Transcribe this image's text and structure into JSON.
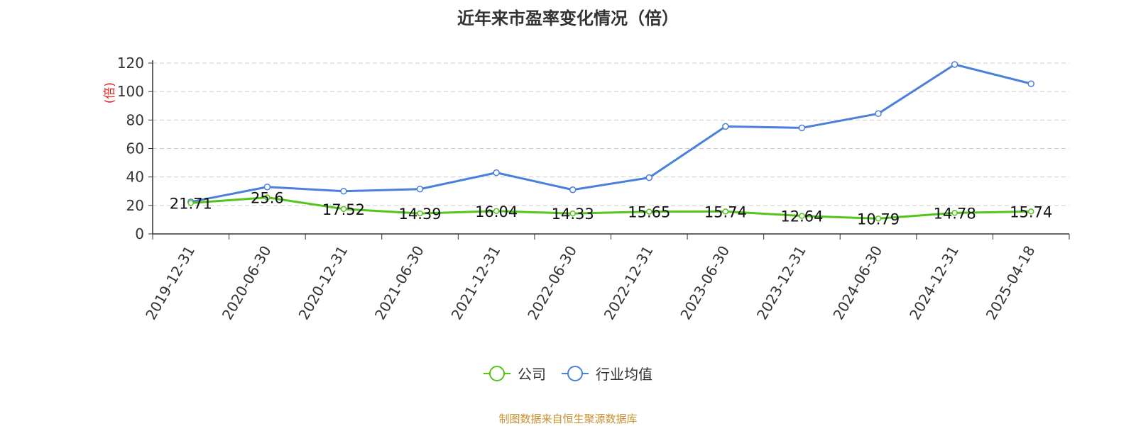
{
  "chart_data": {
    "type": "line",
    "title": "近年来市盈率变化情况（倍）",
    "ylabel": "(倍)",
    "ylim": [
      0,
      120
    ],
    "yticks": [
      0,
      20,
      40,
      60,
      80,
      100,
      120
    ],
    "grid": true,
    "legend_position": "bottom-center",
    "categories": [
      "2019-12-31",
      "2020-06-30",
      "2020-12-31",
      "2021-06-30",
      "2021-12-31",
      "2022-06-30",
      "2022-12-31",
      "2023-06-30",
      "2023-12-31",
      "2024-06-30",
      "2024-12-31",
      "2025-04-18"
    ],
    "series": [
      {
        "name": "公司",
        "color": "#52c41a",
        "values": [
          21.71,
          25.6,
          17.52,
          14.39,
          16.04,
          14.33,
          15.65,
          15.74,
          12.64,
          10.79,
          14.78,
          15.74
        ],
        "data_labels": [
          "21.71",
          "25.6",
          "17.52",
          "14.39",
          "16.04",
          "14.33",
          "15.65",
          "15.74",
          "12.64",
          "10.79",
          "14.78",
          "15.74"
        ]
      },
      {
        "name": "行业均值",
        "color": "#4a7fdc",
        "values": [
          22.5,
          33,
          30,
          31.5,
          43,
          31,
          39.5,
          75.5,
          74.5,
          84.5,
          119,
          105.5
        ]
      }
    ]
  },
  "source_note": "制图数据来自恒生聚源数据库"
}
